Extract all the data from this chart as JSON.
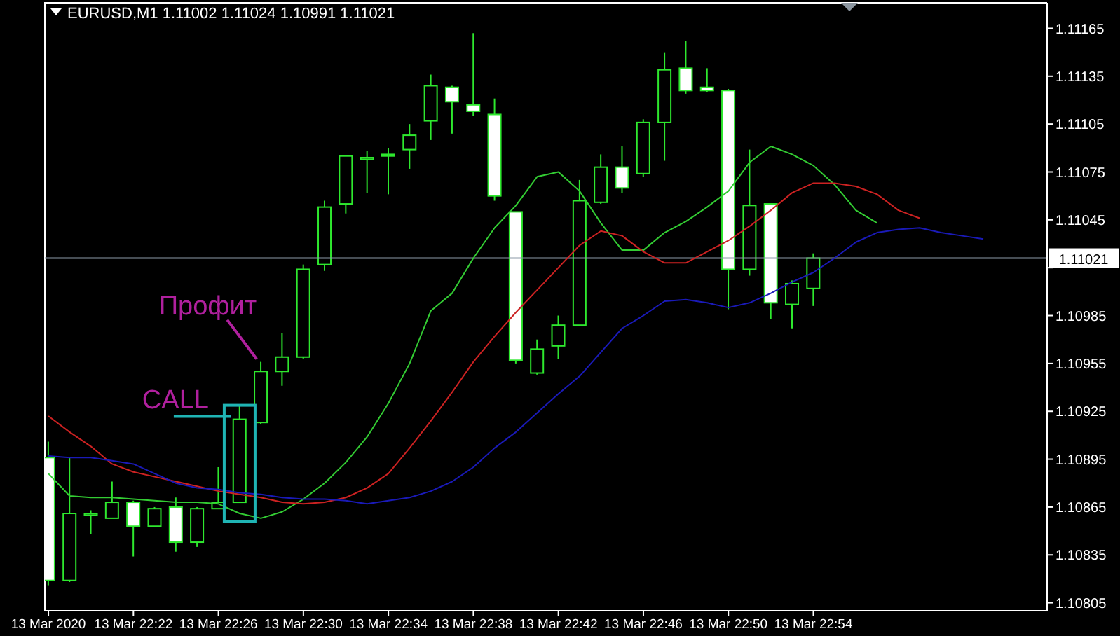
{
  "chart_data": {
    "type": "candlestick",
    "title": "EURUSD,M1 1.11002 1.11024 1.10991 1.11021",
    "color": "#2ee82e",
    "x": [
      "2020-03-13T22:18",
      "2020-03-13T22:19",
      "2020-03-13T22:20",
      "2020-03-13T22:21",
      "2020-03-13T22:22",
      "2020-03-13T22:23",
      "2020-03-13T22:24",
      "2020-03-13T22:25",
      "2020-03-13T22:26",
      "2020-03-13T22:27",
      "2020-03-13T22:28",
      "2020-03-13T22:29",
      "2020-03-13T22:30",
      "2020-03-13T22:31",
      "2020-03-13T22:32",
      "2020-03-13T22:33",
      "2020-03-13T22:34",
      "2020-03-13T22:35",
      "2020-03-13T22:36",
      "2020-03-13T22:37",
      "2020-03-13T22:38",
      "2020-03-13T22:39",
      "2020-03-13T22:40",
      "2020-03-13T22:41",
      "2020-03-13T22:42",
      "2020-03-13T22:43",
      "2020-03-13T22:44",
      "2020-03-13T22:45",
      "2020-03-13T22:46",
      "2020-03-13T22:47",
      "2020-03-13T22:48",
      "2020-03-13T22:49",
      "2020-03-13T22:50",
      "2020-03-13T22:51",
      "2020-03-13T22:52",
      "2020-03-13T22:53",
      "2020-03-13T22:54"
    ],
    "ohlc": [
      [
        1.10896,
        1.10906,
        1.10816,
        1.10819
      ],
      [
        1.10819,
        1.10896,
        1.10818,
        1.10861
      ],
      [
        1.1086,
        1.10863,
        1.10848,
        1.10861
      ],
      [
        1.10858,
        1.10881,
        1.10858,
        1.10868
      ],
      [
        1.10868,
        1.10869,
        1.10834,
        1.10853
      ],
      [
        1.10853,
        1.10865,
        1.10853,
        1.10864
      ],
      [
        1.10865,
        1.10871,
        1.10837,
        1.10843
      ],
      [
        1.10843,
        1.10865,
        1.1084,
        1.10864
      ],
      [
        1.10864,
        1.1089,
        1.10864,
        1.10868
      ],
      [
        1.10868,
        1.10929,
        1.10868,
        1.1092
      ],
      [
        1.10918,
        1.10956,
        1.10917,
        1.1095
      ],
      [
        1.1095,
        1.10974,
        1.10941,
        1.10959
      ],
      [
        1.10959,
        1.11017,
        1.10958,
        1.11014
      ],
      [
        1.11017,
        1.11057,
        1.11013,
        1.11053
      ],
      [
        1.11055,
        1.11085,
        1.11049,
        1.11085
      ],
      [
        1.11083,
        1.11088,
        1.11062,
        1.11084
      ],
      [
        1.11086,
        1.1109,
        1.11061,
        1.11085
      ],
      [
        1.11089,
        1.11105,
        1.11077,
        1.11098
      ],
      [
        1.11107,
        1.11136,
        1.11095,
        1.11129
      ],
      [
        1.11128,
        1.11129,
        1.11099,
        1.11119
      ],
      [
        1.11117,
        1.11162,
        1.1111,
        1.11113
      ],
      [
        1.11111,
        1.11121,
        1.11057,
        1.1106
      ],
      [
        1.1105,
        1.1105,
        1.10955,
        1.10957
      ],
      [
        1.10949,
        1.1097,
        1.10948,
        1.10964
      ],
      [
        1.10966,
        1.10985,
        1.10958,
        1.10979
      ],
      [
        1.10979,
        1.1107,
        1.10979,
        1.11057
      ],
      [
        1.11056,
        1.11086,
        1.11055,
        1.11078
      ],
      [
        1.11078,
        1.11091,
        1.11062,
        1.11065
      ],
      [
        1.11074,
        1.11108,
        1.11072,
        1.11106
      ],
      [
        1.11106,
        1.1115,
        1.11082,
        1.11139
      ],
      [
        1.1114,
        1.11157,
        1.11124,
        1.11126
      ],
      [
        1.11128,
        1.1114,
        1.11125,
        1.11126
      ],
      [
        1.11126,
        1.11127,
        1.10989,
        1.11014
      ],
      [
        1.11014,
        1.11089,
        1.1101,
        1.11054
      ],
      [
        1.11055,
        1.11055,
        1.10983,
        1.10993
      ],
      [
        1.10992,
        1.11007,
        1.10977,
        1.11005
      ],
      [
        1.11002,
        1.11024,
        1.10991,
        1.11021
      ]
    ],
    "series": [
      {
        "type": "line",
        "color": "#33cc33",
        "x": [
          "2020-03-13T22:18",
          "2020-03-13T22:19",
          "2020-03-13T22:20",
          "2020-03-13T22:21",
          "2020-03-13T22:22",
          "2020-03-13T22:23",
          "2020-03-13T22:24",
          "2020-03-13T22:25",
          "2020-03-13T22:26",
          "2020-03-13T22:27",
          "2020-03-13T22:28",
          "2020-03-13T22:29",
          "2020-03-13T22:30",
          "2020-03-13T22:31",
          "2020-03-13T22:32",
          "2020-03-13T22:33",
          "2020-03-13T22:34",
          "2020-03-13T22:35",
          "2020-03-13T22:36",
          "2020-03-13T22:37",
          "2020-03-13T22:38",
          "2020-03-13T22:39",
          "2020-03-13T22:40",
          "2020-03-13T22:41",
          "2020-03-13T22:42",
          "2020-03-13T22:43",
          "2020-03-13T22:44",
          "2020-03-13T22:45",
          "2020-03-13T22:46",
          "2020-03-13T22:47",
          "2020-03-13T22:48",
          "2020-03-13T22:49",
          "2020-03-13T22:50",
          "2020-03-13T22:51",
          "2020-03-13T22:52",
          "2020-03-13T22:53",
          "2020-03-13T22:54",
          "2020-03-13T22:55",
          "2020-03-13T22:56",
          "2020-03-13T22:57"
        ],
        "values": [
          1.10886,
          1.10872,
          1.10871,
          1.10871,
          1.1087,
          1.10869,
          1.10868,
          1.10868,
          1.10867,
          1.10861,
          1.10858,
          1.10862,
          1.1087,
          1.1088,
          1.10893,
          1.10909,
          1.1093,
          1.10955,
          1.10988,
          1.10999,
          1.11021,
          1.1104,
          1.11054,
          1.11072,
          1.11075,
          1.11063,
          1.11043,
          1.11026,
          1.11026,
          1.11037,
          1.11044,
          1.11053,
          1.11063,
          1.11081,
          1.11091,
          1.11086,
          1.11079,
          1.11067,
          1.11051,
          1.11043
        ]
      },
      {
        "type": "line",
        "color": "#cc2222",
        "x": [
          "2020-03-13T22:18",
          "2020-03-13T22:19",
          "2020-03-13T22:20",
          "2020-03-13T22:21",
          "2020-03-13T22:22",
          "2020-03-13T22:23",
          "2020-03-13T22:24",
          "2020-03-13T22:25",
          "2020-03-13T22:26",
          "2020-03-13T22:27",
          "2020-03-13T22:28",
          "2020-03-13T22:29",
          "2020-03-13T22:30",
          "2020-03-13T22:31",
          "2020-03-13T22:32",
          "2020-03-13T22:33",
          "2020-03-13T22:34",
          "2020-03-13T22:35",
          "2020-03-13T22:36",
          "2020-03-13T22:37",
          "2020-03-13T22:38",
          "2020-03-13T22:39",
          "2020-03-13T22:40",
          "2020-03-13T22:41",
          "2020-03-13T22:42",
          "2020-03-13T22:43",
          "2020-03-13T22:44",
          "2020-03-13T22:45",
          "2020-03-13T22:46",
          "2020-03-13T22:47",
          "2020-03-13T22:48",
          "2020-03-13T22:49",
          "2020-03-13T22:50",
          "2020-03-13T22:51",
          "2020-03-13T22:52",
          "2020-03-13T22:53",
          "2020-03-13T22:54",
          "2020-03-13T22:55",
          "2020-03-13T22:56",
          "2020-03-13T22:57",
          "2020-03-13T22:58",
          "2020-03-13T22:59"
        ],
        "values": [
          1.10922,
          1.10912,
          1.10903,
          1.10892,
          1.10887,
          1.10884,
          1.10881,
          1.10878,
          1.10875,
          1.10873,
          1.10871,
          1.10868,
          1.10867,
          1.10868,
          1.10871,
          1.10877,
          1.10886,
          1.10902,
          1.10919,
          1.10937,
          1.10956,
          1.10972,
          1.10987,
          1.11001,
          1.11015,
          1.11029,
          1.11038,
          1.11035,
          1.11025,
          1.11018,
          1.11018,
          1.11025,
          1.11032,
          1.11041,
          1.11051,
          1.11062,
          1.11068,
          1.11068,
          1.11066,
          1.11061,
          1.11051,
          1.11046
        ]
      },
      {
        "type": "line",
        "color": "#1a1ab8",
        "x": [
          "2020-03-13T22:18",
          "2020-03-13T22:19",
          "2020-03-13T22:20",
          "2020-03-13T22:21",
          "2020-03-13T22:22",
          "2020-03-13T22:23",
          "2020-03-13T22:24",
          "2020-03-13T22:25",
          "2020-03-13T22:26",
          "2020-03-13T22:27",
          "2020-03-13T22:28",
          "2020-03-13T22:29",
          "2020-03-13T22:30",
          "2020-03-13T22:31",
          "2020-03-13T22:32",
          "2020-03-13T22:33",
          "2020-03-13T22:34",
          "2020-03-13T22:35",
          "2020-03-13T22:36",
          "2020-03-13T22:37",
          "2020-03-13T22:38",
          "2020-03-13T22:39",
          "2020-03-13T22:40",
          "2020-03-13T22:41",
          "2020-03-13T22:42",
          "2020-03-13T22:43",
          "2020-03-13T22:44",
          "2020-03-13T22:45",
          "2020-03-13T22:46",
          "2020-03-13T22:47",
          "2020-03-13T22:48",
          "2020-03-13T22:49",
          "2020-03-13T22:50",
          "2020-03-13T22:51",
          "2020-03-13T22:52",
          "2020-03-13T22:53",
          "2020-03-13T22:54",
          "2020-03-13T22:55",
          "2020-03-13T22:56",
          "2020-03-13T22:57",
          "2020-03-13T22:58",
          "2020-03-13T22:59",
          "2020-03-13T23:00",
          "2020-03-13T23:01",
          "2020-03-13T23:02"
        ],
        "values": [
          1.10897,
          1.10896,
          1.10896,
          1.10894,
          1.10892,
          1.10886,
          1.1088,
          1.10877,
          1.10876,
          1.10874,
          1.10873,
          1.10871,
          1.1087,
          1.1087,
          1.10869,
          1.10867,
          1.10869,
          1.10871,
          1.10875,
          1.10881,
          1.1089,
          1.10902,
          1.10912,
          1.10924,
          1.10936,
          1.10947,
          1.10962,
          1.10977,
          1.10985,
          1.10994,
          1.10995,
          1.10993,
          1.1099,
          1.10993,
          1.10999,
          1.11006,
          1.11012,
          1.11021,
          1.11031,
          1.11037,
          1.11039,
          1.1104,
          1.11037,
          1.11035,
          1.11033
        ]
      }
    ],
    "xlim": [
      "2020-03-13T22:17:50",
      "2020-03-13T23:05"
    ],
    "xticks": [
      {
        "value": "2020-03-13T22:18",
        "label": "13 Mar 2020"
      },
      {
        "value": "2020-03-13T22:22",
        "label": "13 Mar 22:22"
      },
      {
        "value": "2020-03-13T22:26",
        "label": "13 Mar 22:26"
      },
      {
        "value": "2020-03-13T22:30",
        "label": "13 Mar 22:30"
      },
      {
        "value": "2020-03-13T22:34",
        "label": "13 Mar 22:34"
      },
      {
        "value": "2020-03-13T22:38",
        "label": "13 Mar 22:38"
      },
      {
        "value": "2020-03-13T22:42",
        "label": "13 Mar 22:42"
      },
      {
        "value": "2020-03-13T22:46",
        "label": "13 Mar 22:46"
      },
      {
        "value": "2020-03-13T22:50",
        "label": "13 Mar 22:50"
      },
      {
        "value": "2020-03-13T22:54",
        "label": "13 Mar 22:54"
      }
    ],
    "ylim": [
      1.108,
      1.11181
    ],
    "yticks": [
      1.10805,
      1.10835,
      1.10865,
      1.10895,
      1.10925,
      1.10955,
      1.10985,
      {
        "value": 1.11015,
        "label": null
      },
      1.11045,
      1.11075,
      1.11105,
      1.11135,
      1.11165
    ],
    "ref_lines": [
      {
        "axis": "y",
        "value": 1.11021,
        "label": "1.11021",
        "color": "#8c9aa8"
      }
    ],
    "annotations": [
      {
        "text": "CALL",
        "x": "2020-03-13T22:27",
        "y": 1.1092
      },
      {
        "text": "Профит",
        "x": "2020-03-13T22:28",
        "y": 1.10956
      }
    ],
    "marker": "none",
    "line_style": "solid",
    "grid": false,
    "legend": false
  }
}
